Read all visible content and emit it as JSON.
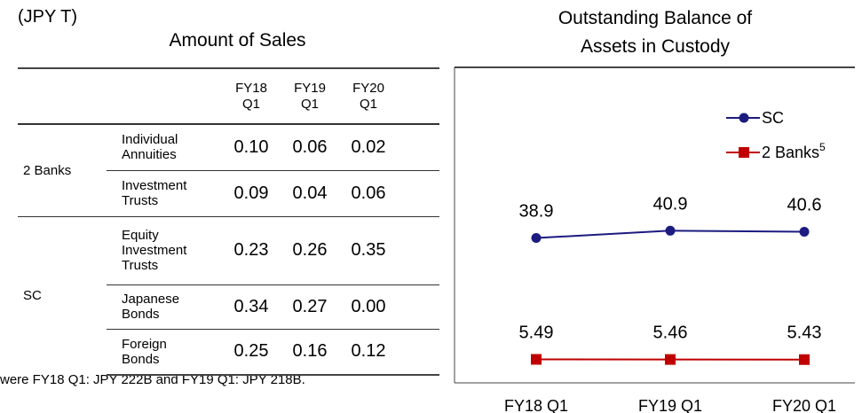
{
  "unit": "(JPY T)",
  "footnote": "were FY18 Q1: JPY 222B and FY19 Q1: JPY 218B.",
  "table": {
    "title": "Amount of Sales",
    "columns": [
      "FY18 Q1",
      "FY19 Q1",
      "FY20 Q1"
    ],
    "groups": [
      {
        "name": "2 Banks",
        "rows": [
          {
            "label": "Individual Annuities",
            "values": [
              "0.10",
              "0.06",
              "0.02"
            ]
          },
          {
            "label": "Investment Trusts",
            "values": [
              "0.09",
              "0.04",
              "0.06"
            ]
          }
        ]
      },
      {
        "name": "SC",
        "rows": [
          {
            "label": "Equity Investment Trusts",
            "values": [
              "0.23",
              "0.26",
              "0.35"
            ]
          },
          {
            "label": "Japanese Bonds",
            "values": [
              "0.34",
              "0.27",
              "0.00"
            ]
          },
          {
            "label": "Foreign Bonds",
            "values": [
              "0.25",
              "0.16",
              "0.12"
            ]
          }
        ]
      }
    ]
  },
  "chart_data": {
    "type": "line",
    "title": [
      "Outstanding Balance of",
      "Assets in Custody"
    ],
    "categories": [
      "FY18 Q1",
      "FY19 Q1",
      "FY20 Q1"
    ],
    "ylim": [
      0,
      60
    ],
    "series": [
      {
        "name": "SC",
        "color": "#1b1b80",
        "marker": "circle",
        "values": [
          38.9,
          40.9,
          40.6
        ]
      },
      {
        "name": "2 Banks",
        "footnote_mark": "5",
        "color": "#c00000",
        "marker": "square",
        "values": [
          5.49,
          5.46,
          5.43
        ]
      }
    ]
  }
}
